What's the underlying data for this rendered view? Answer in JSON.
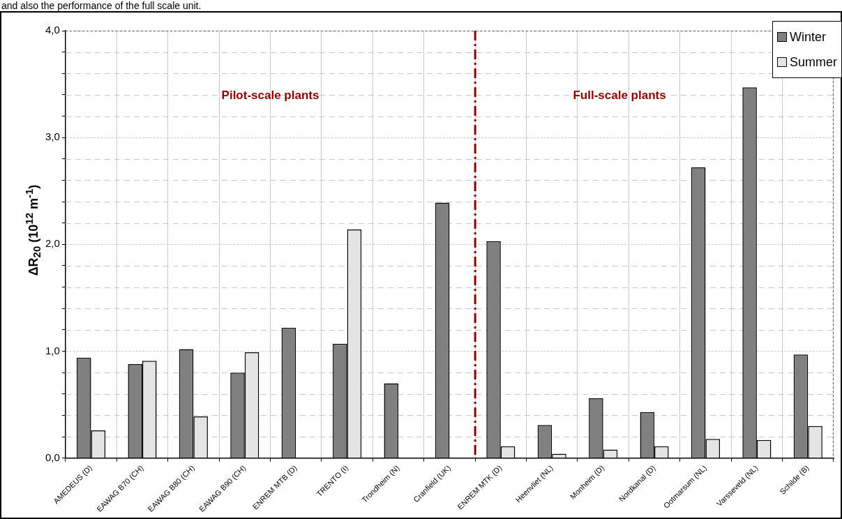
{
  "chart_data": {
    "type": "bar",
    "ylabel": "ΔR$_{20}$ (10$^{12}$ m$^{-1}$)",
    "annotations": [
      "and also the performance of the full scale unit.",
      "Pilot-scale plants",
      "Full-scale plants"
    ],
    "categories": [
      "AMEDEUS (D)",
      "EAWAG B70 (CH)",
      "EAWAG B80 (CH)",
      "EAWAG B90 (CH)",
      "ENREM MTB (D)",
      "TRENTO (I)",
      "Trondheim (N)",
      "Cranfield (UK)",
      "ENREM MTK (D)",
      "Heenvliet (NL)",
      "Monheim (D)",
      "Nordkanal (D)",
      "Ootmarsum (NL)",
      "Varsseveld (NL)",
      "Schilde (B)"
    ],
    "series": [
      {
        "name": "Winter",
        "color": "#808080",
        "values": [
          0.94,
          0.88,
          1.02,
          0.8,
          1.22,
          1.07,
          0.7,
          2.39,
          2.03,
          0.31,
          0.56,
          0.43,
          2.72,
          3.47,
          0.97
        ]
      },
      {
        "name": "Summer",
        "color": "#e4e4e4",
        "values": [
          0.26,
          0.91,
          0.39,
          0.99,
          null,
          2.14,
          null,
          null,
          0.11,
          0.04,
          0.08,
          0.11,
          0.18,
          0.17,
          0.3
        ]
      }
    ],
    "ylim": [
      0,
      4
    ],
    "yticks": [
      {
        "value": 0,
        "label": "0,0"
      },
      {
        "value": 0.2,
        "label": null
      },
      {
        "value": 0.4,
        "label": null
      },
      {
        "value": 0.6,
        "label": null
      },
      {
        "value": 0.8,
        "label": null
      },
      {
        "value": 1,
        "label": "1,0"
      },
      {
        "value": 1.2,
        "label": null
      },
      {
        "value": 1.4,
        "label": null
      },
      {
        "value": 1.6,
        "label": null
      },
      {
        "value": 1.8,
        "label": null
      },
      {
        "value": 2,
        "label": "2,0"
      },
      {
        "value": 2.2,
        "label": null
      },
      {
        "value": 2.4,
        "label": null
      },
      {
        "value": 2.6,
        "label": null
      },
      {
        "value": 2.8,
        "label": null
      },
      {
        "value": 3,
        "label": "3,0"
      },
      {
        "value": 3.2,
        "label": null
      },
      {
        "value": 3.4,
        "label": null
      },
      {
        "value": 3.6,
        "label": null
      },
      {
        "value": 3.8,
        "label": null
      },
      {
        "value": 4,
        "label": "4,0"
      }
    ],
    "ref_lines": [
      {
        "axis": "x",
        "value": "ENREM MTK (D)",
        "color": "#8b0000",
        "line_style": "dashed"
      }
    ],
    "grid": true,
    "legend": "top right"
  }
}
